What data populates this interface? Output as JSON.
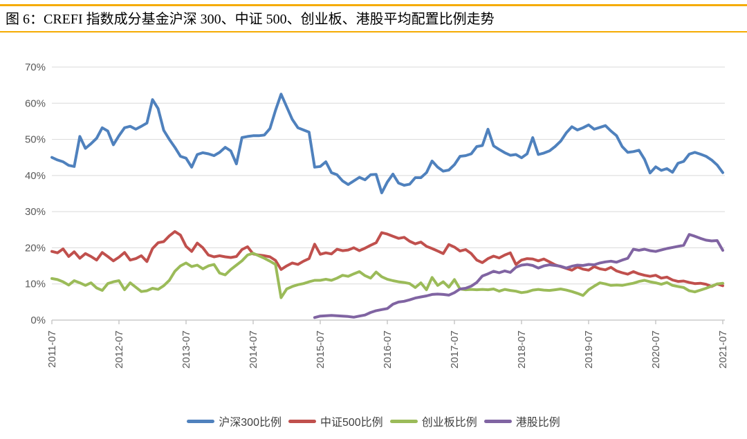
{
  "title": {
    "text": "图 6：CREFI 指数成分基金沪深 300、中证 500、创业板、港股平均配置比例走势"
  },
  "style": {
    "accent_rule_color": "#F5AB00",
    "grid_color": "#D9D9D9",
    "axis_color": "#BFBFBF",
    "tick_label_color": "#595959",
    "legend_text_color": "#3F3F3F",
    "background_color": "#FFFFFF"
  },
  "chart_data": {
    "type": "line",
    "title": "图 6：CREFI 指数成分基金沪深 300、中证 500、创业板、港股平均配置比例走势",
    "x_start": "2011-07",
    "x_end": "2021-07",
    "x_interval": "monthly",
    "x_tick_labels": [
      "2011-07",
      "2012-07",
      "2013-07",
      "2014-07",
      "2015-07",
      "2016-07",
      "2017-07",
      "2018-07",
      "2019-07",
      "2020-07",
      "2021-07"
    ],
    "xlabel": "",
    "ylabel": "",
    "ylim": [
      0,
      70
    ],
    "y_tick_labels": [
      "0%",
      "10%",
      "20%",
      "30%",
      "40%",
      "50%",
      "60%",
      "70%"
    ],
    "grid": "horizontal",
    "legend_position": "bottom",
    "series": [
      {
        "name": "沪深300比例",
        "slug": "hs300",
        "color": "#4F81BD",
        "values": [
          45.0,
          44.3,
          43.8,
          42.8,
          42.5,
          50.8,
          47.5,
          48.8,
          50.3,
          53.2,
          52.3,
          48.5,
          51.0,
          53.2,
          53.6,
          52.8,
          53.6,
          54.5,
          61.0,
          58.5,
          52.5,
          50.0,
          47.8,
          45.3,
          44.8,
          42.3,
          45.8,
          46.3,
          46.0,
          45.5,
          46.4,
          47.8,
          46.8,
          43.2,
          50.5,
          50.8,
          51.0,
          51.0,
          51.2,
          53.0,
          58.0,
          62.5,
          59.0,
          55.5,
          53.2,
          52.6,
          52.0,
          42.3,
          42.5,
          43.8,
          40.8,
          40.2,
          38.5,
          37.5,
          38.5,
          39.5,
          38.8,
          40.2,
          40.3,
          35.2,
          38.2,
          40.4,
          37.9,
          37.3,
          37.6,
          39.4,
          39.4,
          40.8,
          44.0,
          42.3,
          41.2,
          41.5,
          43.0,
          45.3,
          45.5,
          46.0,
          48.0,
          48.3,
          52.8,
          48.2,
          47.2,
          46.3,
          45.6,
          45.8,
          44.9,
          46.0,
          50.5,
          45.8,
          46.2,
          46.8,
          48.0,
          49.5,
          51.8,
          53.5,
          52.6,
          53.2,
          54.0,
          52.8,
          53.3,
          53.8,
          52.3,
          51.0,
          48.0,
          46.4,
          46.6,
          47.0,
          44.5,
          40.7,
          42.4,
          41.4,
          41.9,
          40.9,
          43.4,
          43.9,
          45.9,
          46.4,
          45.9,
          45.3,
          44.3,
          42.9,
          40.8
        ]
      },
      {
        "name": "中证500比例",
        "slug": "zz500",
        "color": "#C0504D",
        "values": [
          19.0,
          18.6,
          19.7,
          17.6,
          18.9,
          17.1,
          18.4,
          17.6,
          16.6,
          18.7,
          17.6,
          16.4,
          17.4,
          18.7,
          16.6,
          17.0,
          17.8,
          16.2,
          19.8,
          21.4,
          21.7,
          23.3,
          24.5,
          23.5,
          20.4,
          19.0,
          21.3,
          20.0,
          18.0,
          17.5,
          17.8,
          17.5,
          17.3,
          17.6,
          19.5,
          20.3,
          18.3,
          18.0,
          17.8,
          17.5,
          16.5,
          14.0,
          15.0,
          15.8,
          15.4,
          16.3,
          17.0,
          21.0,
          18.2,
          18.6,
          18.3,
          19.6,
          19.2,
          19.4,
          20.0,
          19.2,
          19.9,
          20.7,
          21.4,
          24.2,
          23.8,
          23.2,
          22.6,
          22.9,
          21.8,
          21.1,
          21.6,
          20.4,
          19.8,
          19.1,
          18.4,
          20.9,
          20.2,
          19.1,
          19.5,
          18.4,
          16.6,
          15.9,
          17.0,
          17.7,
          17.2,
          18.0,
          18.6,
          15.4,
          16.6,
          17.0,
          16.9,
          16.4,
          16.9,
          16.1,
          15.3,
          14.8,
          14.3,
          13.8,
          14.7,
          14.1,
          13.8,
          14.8,
          14.2,
          13.9,
          14.6,
          13.6,
          13.1,
          12.7,
          13.4,
          12.8,
          12.4,
          12.1,
          12.4,
          11.6,
          11.9,
          11.1,
          10.7,
          10.8,
          10.4,
          10.1,
          10.2,
          9.9,
          9.3,
          10.0,
          9.5
        ]
      },
      {
        "name": "创业板比例",
        "slug": "chinext",
        "color": "#9BBB59",
        "values": [
          11.5,
          11.2,
          10.6,
          9.7,
          10.9,
          10.3,
          9.6,
          10.3,
          8.9,
          8.2,
          10.1,
          10.6,
          10.9,
          8.4,
          10.3,
          9.1,
          7.9,
          8.1,
          8.8,
          8.5,
          9.5,
          11.0,
          13.5,
          15.0,
          15.8,
          14.8,
          15.2,
          14.2,
          15.0,
          15.4,
          13.0,
          12.5,
          14.0,
          15.2,
          16.4,
          18.0,
          18.5,
          17.8,
          17.1,
          16.3,
          15.4,
          6.2,
          8.6,
          9.3,
          9.8,
          10.1,
          10.6,
          11.0,
          11.0,
          11.3,
          11.0,
          11.6,
          12.4,
          12.1,
          12.8,
          13.4,
          12.3,
          11.6,
          13.3,
          12.0,
          11.3,
          10.9,
          10.6,
          10.4,
          10.1,
          9.0,
          10.3,
          8.4,
          11.8,
          9.6,
          10.6,
          9.1,
          11.2,
          8.6,
          8.4,
          8.5,
          8.4,
          8.5,
          8.4,
          8.6,
          8.0,
          8.5,
          8.2,
          8.0,
          7.6,
          7.8,
          8.3,
          8.5,
          8.3,
          8.2,
          8.4,
          8.6,
          8.3,
          7.9,
          7.4,
          6.8,
          8.4,
          9.4,
          10.3,
          10.0,
          9.6,
          9.7,
          9.6,
          9.9,
          10.2,
          10.7,
          11.0,
          10.6,
          10.3,
          9.9,
          10.4,
          9.6,
          9.3,
          9.0,
          8.1,
          7.8,
          8.3,
          8.8,
          9.4,
          10.0,
          10.2
        ]
      },
      {
        "name": "港股比例",
        "slug": "hk",
        "color": "#8064A2",
        "values": [
          null,
          null,
          null,
          null,
          null,
          null,
          null,
          null,
          null,
          null,
          null,
          null,
          null,
          null,
          null,
          null,
          null,
          null,
          null,
          null,
          null,
          null,
          null,
          null,
          null,
          null,
          null,
          null,
          null,
          null,
          null,
          null,
          null,
          null,
          null,
          null,
          null,
          null,
          null,
          null,
          null,
          null,
          null,
          null,
          null,
          null,
          null,
          0.7,
          1.1,
          1.2,
          1.3,
          1.2,
          1.1,
          1.0,
          0.8,
          1.1,
          1.4,
          2.1,
          2.6,
          2.9,
          3.2,
          4.4,
          5.0,
          5.2,
          5.6,
          6.1,
          6.4,
          6.7,
          7.1,
          7.2,
          7.1,
          6.9,
          7.6,
          8.6,
          8.8,
          9.4,
          10.4,
          12.2,
          12.8,
          13.5,
          13.1,
          13.6,
          13.2,
          14.6,
          15.2,
          15.4,
          15.1,
          14.4,
          15.0,
          15.3,
          15.1,
          14.9,
          14.4,
          14.9,
          15.2,
          15.1,
          15.4,
          15.3,
          15.8,
          16.1,
          16.3,
          16.0,
          16.6,
          17.1,
          19.6,
          19.3,
          19.6,
          19.2,
          19.0,
          19.4,
          19.8,
          20.1,
          20.4,
          20.7,
          23.7,
          23.2,
          22.6,
          22.1,
          21.9,
          22.0,
          19.3
        ]
      }
    ]
  }
}
